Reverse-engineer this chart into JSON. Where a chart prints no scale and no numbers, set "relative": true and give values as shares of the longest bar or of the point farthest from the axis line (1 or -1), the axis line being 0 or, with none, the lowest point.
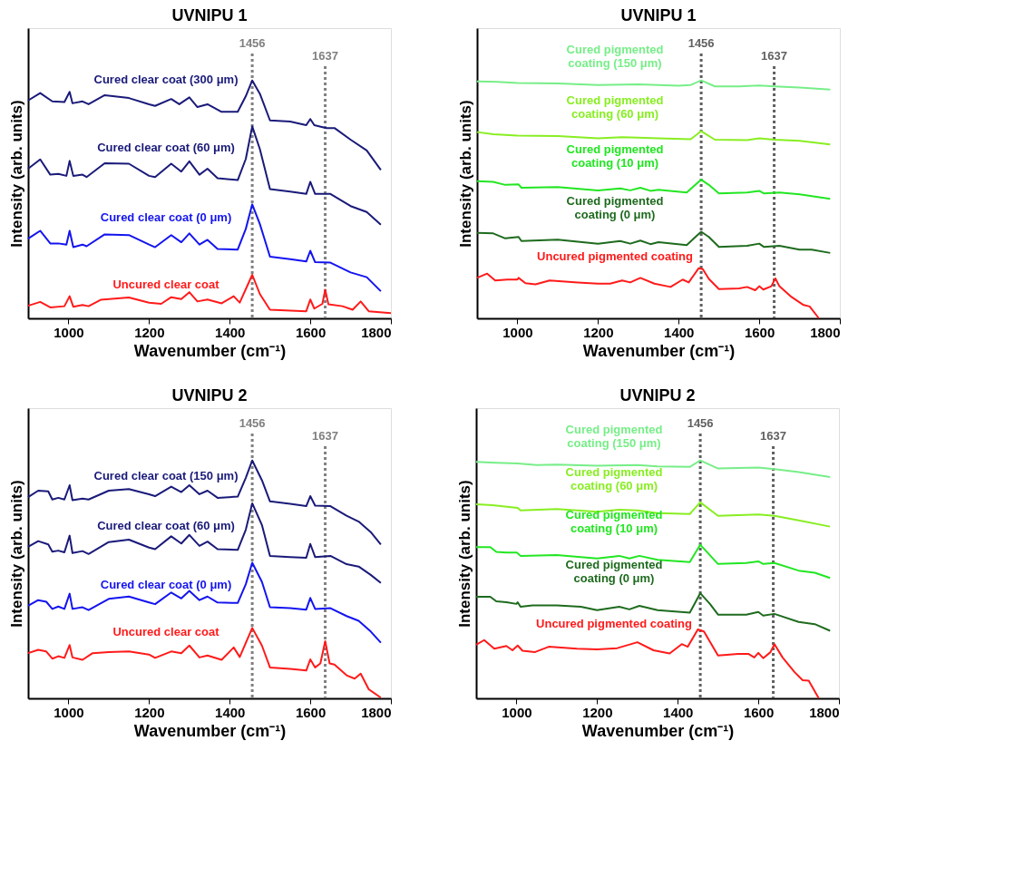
{
  "chart_data": [
    {
      "type": "line",
      "title": "UVNIPU 1",
      "xlabel": "Wavenumber (cm⁻¹)",
      "ylabel": "Intensity (arb. units)",
      "relative": true,
      "xlim": [
        900,
        1800
      ],
      "xticks": [
        1000,
        1200,
        1400,
        1600,
        1800
      ],
      "grid": false,
      "ref_lines": [
        {
          "axis": "x",
          "value": 1456,
          "label": "1456",
          "color": "#808080",
          "line_style": "dotted"
        },
        {
          "axis": "x",
          "value": 1637,
          "label": "1637",
          "color": "#808080",
          "line_style": "dotted"
        }
      ],
      "series": [
        {
          "name": "Cured clear coat (300 μm)",
          "color": "#1a1a7a",
          "x": [
            900,
            930,
            960,
            990,
            1003,
            1010,
            1035,
            1050,
            1090,
            1150,
            1200,
            1215,
            1255,
            1275,
            1300,
            1320,
            1345,
            1380,
            1420,
            1440,
            1456,
            1475,
            1500,
            1550,
            1590,
            1600,
            1610,
            1640,
            1660,
            1700,
            1740,
            1775
          ],
          "values": [
            0.916,
            0.947,
            0.912,
            0.909,
            0.952,
            0.904,
            0.912,
            0.9,
            0.938,
            0.926,
            0.9,
            0.893,
            0.922,
            0.9,
            0.929,
            0.888,
            0.9,
            0.868,
            0.868,
            0.934,
            1.0,
            0.944,
            0.832,
            0.827,
            0.812,
            0.838,
            0.812,
            0.8,
            0.8,
            0.751,
            0.706,
            0.624
          ]
        },
        {
          "name": "Cured clear coat (60 μm)",
          "color": "#1a1a7a",
          "x": [
            900,
            930,
            955,
            975,
            995,
            1003,
            1012,
            1035,
            1045,
            1090,
            1150,
            1200,
            1215,
            1255,
            1280,
            1300,
            1325,
            1345,
            1370,
            1420,
            1440,
            1456,
            1475,
            1500,
            1550,
            1590,
            1600,
            1612,
            1650,
            1700,
            1740,
            1775
          ],
          "values": [
            0.629,
            0.668,
            0.604,
            0.607,
            0.599,
            0.662,
            0.599,
            0.604,
            0.594,
            0.652,
            0.65,
            0.599,
            0.594,
            0.65,
            0.617,
            0.66,
            0.604,
            0.629,
            0.589,
            0.581,
            0.67,
            0.807,
            0.711,
            0.543,
            0.533,
            0.523,
            0.574,
            0.523,
            0.523,
            0.472,
            0.447,
            0.394
          ]
        },
        {
          "name": "Cured clear coat (0 μm)",
          "color": "#1414f0",
          "x": [
            900,
            930,
            955,
            975,
            995,
            1003,
            1012,
            1035,
            1045,
            1090,
            1150,
            1200,
            1215,
            1255,
            1280,
            1300,
            1325,
            1345,
            1370,
            1420,
            1440,
            1456,
            1475,
            1500,
            1550,
            1590,
            1600,
            1612,
            1650,
            1700,
            1740,
            1775
          ],
          "values": [
            0.335,
            0.368,
            0.315,
            0.315,
            0.31,
            0.368,
            0.299,
            0.31,
            0.303,
            0.353,
            0.35,
            0.31,
            0.299,
            0.35,
            0.32,
            0.357,
            0.31,
            0.33,
            0.292,
            0.289,
            0.376,
            0.479,
            0.396,
            0.259,
            0.249,
            0.239,
            0.284,
            0.236,
            0.234,
            0.193,
            0.173,
            0.114
          ]
        },
        {
          "name": "Uncured clear coat",
          "color": "#ff1a1a",
          "x": [
            900,
            930,
            955,
            990,
            1003,
            1012,
            1035,
            1050,
            1080,
            1150,
            1200,
            1230,
            1255,
            1280,
            1300,
            1320,
            1345,
            1380,
            1410,
            1425,
            1456,
            1475,
            1500,
            1590,
            1600,
            1610,
            1630,
            1637,
            1645,
            1680,
            1705,
            1725,
            1745,
            1800
          ],
          "values": [
            0.053,
            0.069,
            0.046,
            0.051,
            0.093,
            0.049,
            0.056,
            0.051,
            0.078,
            0.088,
            0.066,
            0.061,
            0.089,
            0.081,
            0.11,
            0.071,
            0.079,
            0.063,
            0.093,
            0.066,
            0.183,
            0.102,
            0.036,
            0.03,
            0.079,
            0.041,
            0.061,
            0.12,
            0.059,
            0.051,
            0.036,
            0.071,
            0.03,
            0.022
          ]
        }
      ]
    },
    {
      "type": "line",
      "title": "UVNIPU 1",
      "xlabel": "Wavenumber (cm⁻¹)",
      "ylabel": "Intensity (arb. units)",
      "relative": true,
      "xlim": [
        900,
        1800
      ],
      "xticks": [
        1000,
        1200,
        1400,
        1600,
        1800
      ],
      "grid": false,
      "ref_lines": [
        {
          "axis": "x",
          "value": 1456,
          "label": "1456",
          "color": "#606060",
          "line_style": "dotted"
        },
        {
          "axis": "x",
          "value": 1637,
          "label": "1637",
          "color": "#606060",
          "line_style": "dotted"
        }
      ],
      "series": [
        {
          "name": "Cured pigmented\ncoating (150 μm)",
          "color": "#77ee88",
          "x": [
            900,
            950,
            1000,
            1100,
            1200,
            1300,
            1400,
            1430,
            1456,
            1490,
            1550,
            1600,
            1637,
            1700,
            1776
          ],
          "values": [
            0.996,
            0.994,
            0.989,
            0.987,
            0.981,
            0.984,
            0.978,
            0.981,
            1.0,
            0.975,
            0.975,
            0.979,
            0.975,
            0.97,
            0.962
          ]
        },
        {
          "name": "Cured pigmented\ncoating (60 μm)",
          "color": "#88ee22",
          "x": [
            900,
            940,
            1000,
            1100,
            1200,
            1260,
            1300,
            1350,
            1430,
            1456,
            1490,
            1570,
            1600,
            1637,
            1700,
            1776
          ],
          "values": [
            0.783,
            0.774,
            0.768,
            0.766,
            0.757,
            0.762,
            0.76,
            0.757,
            0.753,
            0.787,
            0.751,
            0.749,
            0.757,
            0.751,
            0.746,
            0.731
          ]
        },
        {
          "name": "Cured pigmented\ncoating (10 μm)",
          "color": "#22e622",
          "x": [
            900,
            940,
            970,
            1003,
            1010,
            1100,
            1200,
            1255,
            1280,
            1305,
            1330,
            1350,
            1420,
            1456,
            1475,
            1500,
            1570,
            1600,
            1612,
            1650,
            1700,
            1776
          ],
          "values": [
            0.577,
            0.574,
            0.561,
            0.563,
            0.549,
            0.552,
            0.538,
            0.546,
            0.538,
            0.549,
            0.536,
            0.54,
            0.529,
            0.583,
            0.561,
            0.525,
            0.529,
            0.536,
            0.525,
            0.529,
            0.521,
            0.502
          ]
        },
        {
          "name": "Cured pigmented\ncoating (0 μm)",
          "color": "#1e6b1e",
          "x": [
            900,
            940,
            970,
            1003,
            1010,
            1100,
            1200,
            1255,
            1280,
            1305,
            1330,
            1350,
            1420,
            1456,
            1475,
            1500,
            1570,
            1600,
            1612,
            1650,
            1700,
            1730,
            1776
          ],
          "values": [
            0.359,
            0.357,
            0.336,
            0.342,
            0.325,
            0.331,
            0.314,
            0.325,
            0.314,
            0.327,
            0.312,
            0.32,
            0.308,
            0.364,
            0.342,
            0.3,
            0.305,
            0.314,
            0.3,
            0.305,
            0.289,
            0.289,
            0.275
          ]
        },
        {
          "name": "Uncured pigmented coating",
          "color": "#ff1a1a",
          "x": [
            900,
            925,
            945,
            975,
            1000,
            1003,
            1020,
            1045,
            1080,
            1150,
            1200,
            1230,
            1260,
            1280,
            1305,
            1340,
            1380,
            1410,
            1425,
            1450,
            1460,
            1475,
            1500,
            1550,
            1570,
            1590,
            1600,
            1610,
            1630,
            1640,
            1650,
            1680,
            1710,
            1725,
            1748
          ],
          "values": [
            0.17,
            0.188,
            0.159,
            0.163,
            0.163,
            0.17,
            0.148,
            0.143,
            0.159,
            0.151,
            0.146,
            0.146,
            0.159,
            0.151,
            0.17,
            0.146,
            0.132,
            0.163,
            0.151,
            0.211,
            0.207,
            0.166,
            0.123,
            0.126,
            0.132,
            0.118,
            0.135,
            0.121,
            0.135,
            0.168,
            0.135,
            0.09,
            0.056,
            0.05,
            0.0
          ]
        }
      ]
    },
    {
      "type": "line",
      "title": "UVNIPU 2",
      "xlabel": "Wavenumber (cm⁻¹)",
      "ylabel": "Intensity (arb. units)",
      "relative": true,
      "xlim": [
        900,
        1800
      ],
      "xticks": [
        1000,
        1200,
        1400,
        1600,
        1800
      ],
      "grid": false,
      "ref_lines": [
        {
          "axis": "x",
          "value": 1456,
          "label": "1456",
          "color": "#808080",
          "line_style": "dotted"
        },
        {
          "axis": "x",
          "value": 1637,
          "label": "1637",
          "color": "#808080",
          "line_style": "dotted"
        }
      ],
      "series": [
        {
          "name": "Cured clear coat (150 μm)",
          "color": "#1a1a7a",
          "x": [
            900,
            925,
            950,
            960,
            975,
            990,
            1003,
            1010,
            1035,
            1050,
            1100,
            1150,
            1200,
            1215,
            1255,
            1280,
            1300,
            1325,
            1345,
            1370,
            1420,
            1440,
            1456,
            1480,
            1500,
            1550,
            1590,
            1600,
            1612,
            1650,
            1690,
            1720,
            1750,
            1775
          ],
          "values": [
            0.846,
            0.873,
            0.87,
            0.836,
            0.843,
            0.836,
            0.896,
            0.833,
            0.84,
            0.836,
            0.873,
            0.88,
            0.858,
            0.85,
            0.89,
            0.867,
            0.896,
            0.858,
            0.873,
            0.843,
            0.848,
            0.927,
            1.0,
            0.917,
            0.828,
            0.818,
            0.808,
            0.85,
            0.81,
            0.808,
            0.768,
            0.743,
            0.699,
            0.647
          ]
        },
        {
          "name": "Cured clear coat (60 μm)",
          "color": "#1a1a7a",
          "x": [
            900,
            925,
            950,
            960,
            975,
            990,
            1003,
            1010,
            1035,
            1050,
            1100,
            1150,
            1200,
            1215,
            1255,
            1280,
            1300,
            1325,
            1345,
            1370,
            1420,
            1440,
            1456,
            1480,
            1500,
            1550,
            1590,
            1600,
            1612,
            1650,
            1690,
            1720,
            1750,
            1775
          ],
          "values": [
            0.637,
            0.661,
            0.647,
            0.617,
            0.621,
            0.614,
            0.684,
            0.611,
            0.619,
            0.607,
            0.657,
            0.667,
            0.634,
            0.627,
            0.681,
            0.651,
            0.687,
            0.641,
            0.659,
            0.627,
            0.624,
            0.709,
            0.82,
            0.729,
            0.599,
            0.594,
            0.591,
            0.649,
            0.594,
            0.599,
            0.564,
            0.554,
            0.519,
            0.485
          ]
        },
        {
          "name": "Cured clear coat (0 μm)",
          "color": "#1414f0",
          "x": [
            900,
            925,
            945,
            960,
            975,
            990,
            1003,
            1010,
            1035,
            1050,
            1100,
            1150,
            1200,
            1215,
            1255,
            1280,
            1300,
            1325,
            1345,
            1370,
            1420,
            1440,
            1456,
            1480,
            1500,
            1550,
            1590,
            1600,
            1612,
            1650,
            1690,
            1720,
            1750,
            1775
          ],
          "values": [
            0.389,
            0.413,
            0.406,
            0.376,
            0.386,
            0.376,
            0.44,
            0.376,
            0.383,
            0.371,
            0.418,
            0.428,
            0.403,
            0.396,
            0.445,
            0.42,
            0.452,
            0.413,
            0.428,
            0.403,
            0.401,
            0.48,
            0.57,
            0.49,
            0.383,
            0.379,
            0.373,
            0.422,
            0.376,
            0.379,
            0.346,
            0.326,
            0.281,
            0.234
          ]
        },
        {
          "name": "Uncured clear coat",
          "color": "#ff1a1a",
          "x": [
            900,
            925,
            945,
            960,
            975,
            990,
            1003,
            1010,
            1035,
            1060,
            1100,
            1150,
            1200,
            1215,
            1255,
            1280,
            1300,
            1325,
            1345,
            1380,
            1410,
            1425,
            1456,
            1480,
            1500,
            1550,
            1590,
            1600,
            1612,
            1625,
            1637,
            1648,
            1660,
            1690,
            1710,
            1725,
            1745,
            1775
          ],
          "values": [
            0.19,
            0.204,
            0.197,
            0.167,
            0.177,
            0.17,
            0.224,
            0.172,
            0.162,
            0.19,
            0.194,
            0.197,
            0.184,
            0.17,
            0.197,
            0.19,
            0.222,
            0.172,
            0.18,
            0.162,
            0.214,
            0.174,
            0.296,
            0.222,
            0.13,
            0.124,
            0.117,
            0.164,
            0.13,
            0.147,
            0.24,
            0.147,
            0.142,
            0.097,
            0.083,
            0.104,
            0.038,
            0.003
          ]
        }
      ]
    },
    {
      "type": "line",
      "title": "UVNIPU 2",
      "xlabel": "Wavenumber (cm⁻¹)",
      "ylabel": "Intensity (arb. units)",
      "relative": true,
      "xlim": [
        900,
        1800
      ],
      "xticks": [
        1000,
        1200,
        1400,
        1600,
        1800
      ],
      "grid": false,
      "ref_lines": [
        {
          "axis": "x",
          "value": 1456,
          "label": "1456",
          "color": "#606060",
          "line_style": "dotted"
        },
        {
          "axis": "x",
          "value": 1637,
          "label": "1637",
          "color": "#606060",
          "line_style": "dotted"
        }
      ],
      "series": [
        {
          "name": "Cured pigmented\ncoating (150 μm)",
          "color": "#77ee88",
          "x": [
            900,
            950,
            1003,
            1050,
            1100,
            1200,
            1300,
            1350,
            1430,
            1456,
            1500,
            1600,
            1640,
            1700,
            1778
          ],
          "values": [
            0.994,
            0.99,
            0.987,
            0.981,
            0.983,
            0.978,
            0.981,
            0.975,
            0.973,
            1.0,
            0.966,
            0.97,
            0.964,
            0.951,
            0.93
          ]
        },
        {
          "name": "Cured pigmented\ncoating (60 μm)",
          "color": "#88ee22",
          "x": [
            900,
            940,
            1003,
            1010,
            1100,
            1200,
            1255,
            1300,
            1350,
            1430,
            1456,
            1500,
            1600,
            1640,
            1700,
            1778
          ],
          "values": [
            0.816,
            0.812,
            0.801,
            0.79,
            0.796,
            0.784,
            0.793,
            0.79,
            0.779,
            0.775,
            0.824,
            0.767,
            0.773,
            0.767,
            0.748,
            0.722
          ]
        },
        {
          "name": "Cured pigmented\ncoating (10 μm)",
          "color": "#22e622",
          "x": [
            900,
            935,
            950,
            975,
            1000,
            1003,
            1010,
            1100,
            1200,
            1255,
            1280,
            1305,
            1350,
            1430,
            1456,
            1500,
            1570,
            1600,
            1612,
            1640,
            1700,
            1740,
            1778
          ],
          "values": [
            0.636,
            0.636,
            0.616,
            0.613,
            0.613,
            0.61,
            0.599,
            0.602,
            0.588,
            0.599,
            0.588,
            0.599,
            0.582,
            0.573,
            0.646,
            0.565,
            0.569,
            0.576,
            0.565,
            0.569,
            0.537,
            0.528,
            0.506
          ]
        },
        {
          "name": "Cured pigmented\ncoating (0 μm)",
          "color": "#1e6b1e",
          "x": [
            900,
            935,
            950,
            975,
            1000,
            1003,
            1010,
            1040,
            1100,
            1160,
            1200,
            1255,
            1280,
            1305,
            1350,
            1430,
            1456,
            1480,
            1500,
            1570,
            1600,
            1612,
            1640,
            1700,
            1740,
            1778
          ],
          "values": [
            0.427,
            0.427,
            0.408,
            0.404,
            0.397,
            0.404,
            0.385,
            0.391,
            0.391,
            0.385,
            0.371,
            0.385,
            0.374,
            0.389,
            0.371,
            0.36,
            0.442,
            0.397,
            0.352,
            0.352,
            0.363,
            0.348,
            0.355,
            0.321,
            0.312,
            0.284
          ]
        },
        {
          "name": "Uncured pigmented coating",
          "color": "#ff1a1a",
          "x": [
            900,
            920,
            945,
            975,
            990,
            1003,
            1015,
            1045,
            1080,
            1150,
            1200,
            1250,
            1300,
            1340,
            1380,
            1410,
            1425,
            1450,
            1465,
            1500,
            1550,
            1575,
            1590,
            1600,
            1612,
            1630,
            1640,
            1660,
            1690,
            1710,
            1725,
            1750
          ],
          "values": [
            0.225,
            0.245,
            0.209,
            0.22,
            0.202,
            0.222,
            0.2,
            0.194,
            0.217,
            0.209,
            0.206,
            0.211,
            0.236,
            0.202,
            0.189,
            0.228,
            0.217,
            0.29,
            0.281,
            0.18,
            0.187,
            0.187,
            0.172,
            0.191,
            0.169,
            0.194,
            0.228,
            0.172,
            0.11,
            0.076,
            0.074,
            0.0
          ]
        }
      ]
    }
  ]
}
